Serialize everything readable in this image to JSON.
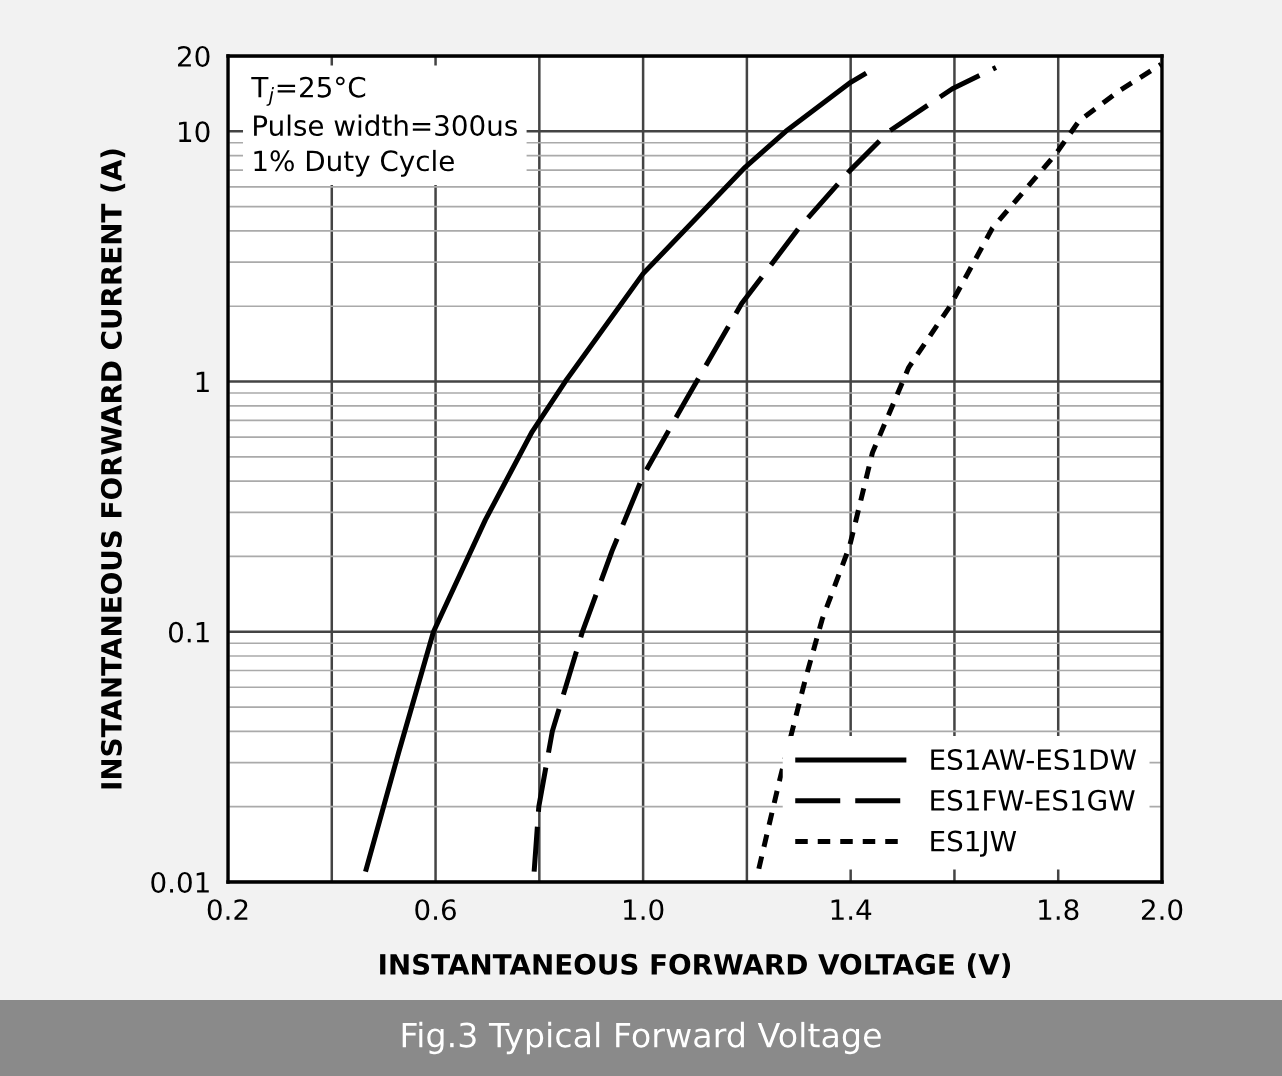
{
  "chart_data": {
    "type": "line",
    "xlabel": "INSTANTANEOUS FORWARD VOLTAGE (V)",
    "ylabel": "INSTANTANEOUS FORWARD CURRENT (A)",
    "annotations": [
      "T$_{j}$=25°C\nPulse width=300us\n1% Duty Cycle",
      "Fig.3 Typical Forward Voltage"
    ],
    "log": "y",
    "xlim": [
      0.2,
      2.0
    ],
    "ylim": [
      0.01,
      20
    ],
    "xticks": [
      0.2,
      {
        "value": 0.4,
        "label": null
      },
      0.6,
      {
        "value": 0.8,
        "label": null
      },
      {
        "value": 1.0,
        "label": "1.0"
      },
      {
        "value": 1.2,
        "label": null
      },
      1.4,
      {
        "value": 1.6,
        "label": null
      },
      1.8,
      {
        "value": 2.0,
        "label": "2.0"
      }
    ],
    "yticks": [
      0.01,
      0.1,
      1,
      10,
      20
    ],
    "grid": true,
    "legend": "bottom right",
    "series": [
      {
        "name": "ES1AW-ES1DW",
        "color": "#000000",
        "line_style": "solid",
        "x": [
          0.465,
          0.529,
          0.596,
          0.696,
          0.786,
          0.85,
          1.0,
          1.197,
          1.275,
          1.4,
          1.43
        ],
        "values": [
          0.011,
          0.033,
          0.1,
          0.28,
          0.63,
          1,
          2.7,
          7.2,
          10,
          15.7,
          17.1
        ]
      },
      {
        "name": "ES1FW-ES1GW",
        "color": "#000000",
        "line_style": "dashed",
        "x": [
          0.79,
          0.799,
          0.825,
          0.883,
          0.94,
          1.0,
          1.082,
          1.19,
          1.3,
          1.398,
          1.474,
          1.596,
          1.68
        ],
        "values": [
          0.011,
          0.02,
          0.04,
          0.1,
          0.21,
          0.42,
          0.84,
          2.05,
          4.1,
          6.95,
          10,
          14.8,
          18
        ]
      },
      {
        "name": "ES1JW",
        "color": "#000000",
        "line_style": "dotted",
        "x": [
          1.223,
          1.262,
          1.313,
          1.345,
          1.398,
          1.442,
          1.512,
          1.59,
          1.673,
          1.795,
          1.84,
          1.917,
          1.998
        ],
        "values": [
          0.0113,
          0.025,
          0.065,
          0.112,
          0.22,
          0.52,
          1.14,
          1.98,
          4.1,
          8.1,
          11,
          14.5,
          18.5
        ]
      }
    ]
  }
}
